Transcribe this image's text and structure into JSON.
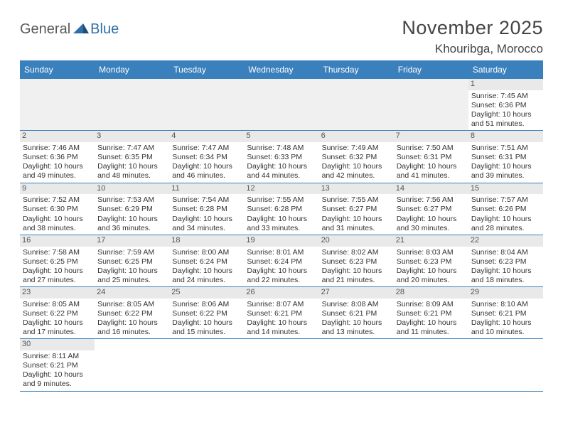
{
  "logo": {
    "part1": "General",
    "part2": "Blue"
  },
  "title": "November 2025",
  "subtitle": "Khouribga, Morocco",
  "daynames": [
    "Sunday",
    "Monday",
    "Tuesday",
    "Wednesday",
    "Thursday",
    "Friday",
    "Saturday"
  ],
  "colors": {
    "accent": "#3a80bc",
    "header_bg": "#e9e9e9",
    "empty_bg": "#f0f0f0"
  },
  "month_start_index": 6,
  "days": [
    {
      "n": 1,
      "sunrise": "7:45 AM",
      "sunset": "6:36 PM",
      "daylight": "10 hours and 51 minutes."
    },
    {
      "n": 2,
      "sunrise": "7:46 AM",
      "sunset": "6:36 PM",
      "daylight": "10 hours and 49 minutes."
    },
    {
      "n": 3,
      "sunrise": "7:47 AM",
      "sunset": "6:35 PM",
      "daylight": "10 hours and 48 minutes."
    },
    {
      "n": 4,
      "sunrise": "7:47 AM",
      "sunset": "6:34 PM",
      "daylight": "10 hours and 46 minutes."
    },
    {
      "n": 5,
      "sunrise": "7:48 AM",
      "sunset": "6:33 PM",
      "daylight": "10 hours and 44 minutes."
    },
    {
      "n": 6,
      "sunrise": "7:49 AM",
      "sunset": "6:32 PM",
      "daylight": "10 hours and 42 minutes."
    },
    {
      "n": 7,
      "sunrise": "7:50 AM",
      "sunset": "6:31 PM",
      "daylight": "10 hours and 41 minutes."
    },
    {
      "n": 8,
      "sunrise": "7:51 AM",
      "sunset": "6:31 PM",
      "daylight": "10 hours and 39 minutes."
    },
    {
      "n": 9,
      "sunrise": "7:52 AM",
      "sunset": "6:30 PM",
      "daylight": "10 hours and 38 minutes."
    },
    {
      "n": 10,
      "sunrise": "7:53 AM",
      "sunset": "6:29 PM",
      "daylight": "10 hours and 36 minutes."
    },
    {
      "n": 11,
      "sunrise": "7:54 AM",
      "sunset": "6:28 PM",
      "daylight": "10 hours and 34 minutes."
    },
    {
      "n": 12,
      "sunrise": "7:55 AM",
      "sunset": "6:28 PM",
      "daylight": "10 hours and 33 minutes."
    },
    {
      "n": 13,
      "sunrise": "7:55 AM",
      "sunset": "6:27 PM",
      "daylight": "10 hours and 31 minutes."
    },
    {
      "n": 14,
      "sunrise": "7:56 AM",
      "sunset": "6:27 PM",
      "daylight": "10 hours and 30 minutes."
    },
    {
      "n": 15,
      "sunrise": "7:57 AM",
      "sunset": "6:26 PM",
      "daylight": "10 hours and 28 minutes."
    },
    {
      "n": 16,
      "sunrise": "7:58 AM",
      "sunset": "6:25 PM",
      "daylight": "10 hours and 27 minutes."
    },
    {
      "n": 17,
      "sunrise": "7:59 AM",
      "sunset": "6:25 PM",
      "daylight": "10 hours and 25 minutes."
    },
    {
      "n": 18,
      "sunrise": "8:00 AM",
      "sunset": "6:24 PM",
      "daylight": "10 hours and 24 minutes."
    },
    {
      "n": 19,
      "sunrise": "8:01 AM",
      "sunset": "6:24 PM",
      "daylight": "10 hours and 22 minutes."
    },
    {
      "n": 20,
      "sunrise": "8:02 AM",
      "sunset": "6:23 PM",
      "daylight": "10 hours and 21 minutes."
    },
    {
      "n": 21,
      "sunrise": "8:03 AM",
      "sunset": "6:23 PM",
      "daylight": "10 hours and 20 minutes."
    },
    {
      "n": 22,
      "sunrise": "8:04 AM",
      "sunset": "6:23 PM",
      "daylight": "10 hours and 18 minutes."
    },
    {
      "n": 23,
      "sunrise": "8:05 AM",
      "sunset": "6:22 PM",
      "daylight": "10 hours and 17 minutes."
    },
    {
      "n": 24,
      "sunrise": "8:05 AM",
      "sunset": "6:22 PM",
      "daylight": "10 hours and 16 minutes."
    },
    {
      "n": 25,
      "sunrise": "8:06 AM",
      "sunset": "6:22 PM",
      "daylight": "10 hours and 15 minutes."
    },
    {
      "n": 26,
      "sunrise": "8:07 AM",
      "sunset": "6:21 PM",
      "daylight": "10 hours and 14 minutes."
    },
    {
      "n": 27,
      "sunrise": "8:08 AM",
      "sunset": "6:21 PM",
      "daylight": "10 hours and 13 minutes."
    },
    {
      "n": 28,
      "sunrise": "8:09 AM",
      "sunset": "6:21 PM",
      "daylight": "10 hours and 11 minutes."
    },
    {
      "n": 29,
      "sunrise": "8:10 AM",
      "sunset": "6:21 PM",
      "daylight": "10 hours and 10 minutes."
    },
    {
      "n": 30,
      "sunrise": "8:11 AM",
      "sunset": "6:21 PM",
      "daylight": "10 hours and 9 minutes."
    }
  ],
  "labels": {
    "sunrise": "Sunrise:",
    "sunset": "Sunset:",
    "daylight": "Daylight:"
  }
}
